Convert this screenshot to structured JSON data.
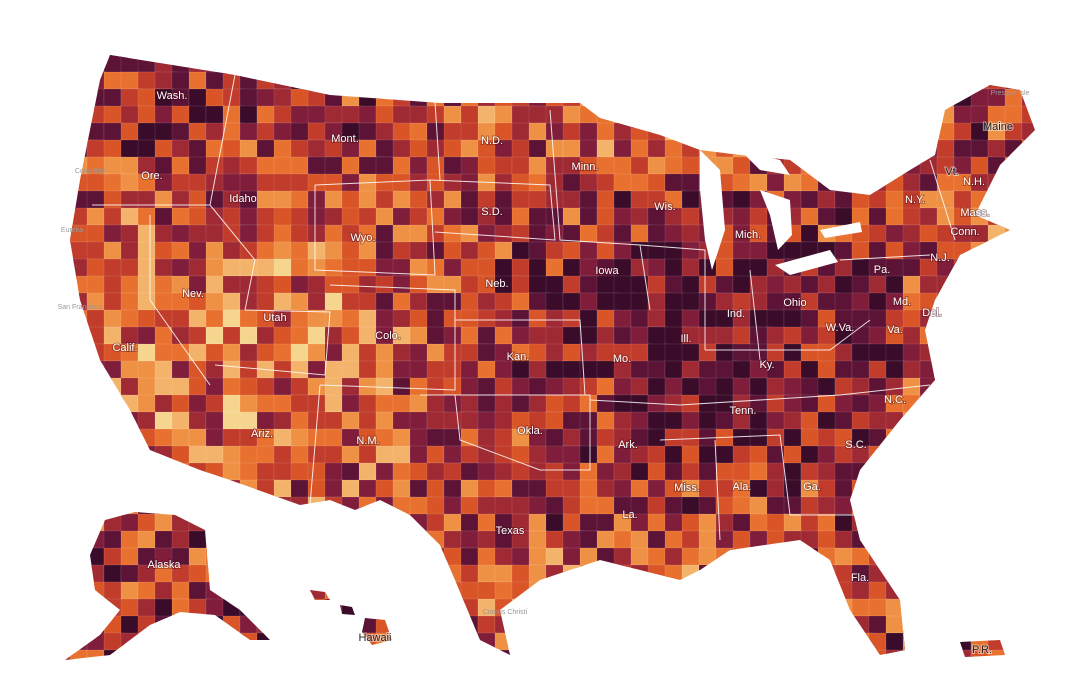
{
  "labels": [
    "Wash.",
    "Ore.",
    "Calif.",
    "Nev.",
    "Idaho",
    "Mont.",
    "Wyo.",
    "Utah",
    "Colo.",
    "Ariz.",
    "N.M.",
    "N.D.",
    "S.D.",
    "Neb.",
    "Kan.",
    "Okla.",
    "Texas",
    "Minn.",
    "Iowa",
    "Mo.",
    "Ark.",
    "La.",
    "Wis.",
    "Ill.",
    "Ind.",
    "Mich.",
    "Ohio",
    "Ky.",
    "Tenn.",
    "Miss.",
    "Ala.",
    "Ga.",
    "Fla.",
    "S.C.",
    "N.C.",
    "Va.",
    "W.Va.",
    "Pa.",
    "N.Y.",
    "Vt.",
    "N.H.",
    "Maine",
    "Mass.",
    "Conn.",
    "N.J.",
    "Md.",
    "Del.",
    "Alaska",
    "Hawaii",
    "P.R."
  ],
  "cities": [
    "Coos Bay",
    "Eureka",
    "San Francisco",
    "Presque Isle",
    "Corpus Christi"
  ]
}
